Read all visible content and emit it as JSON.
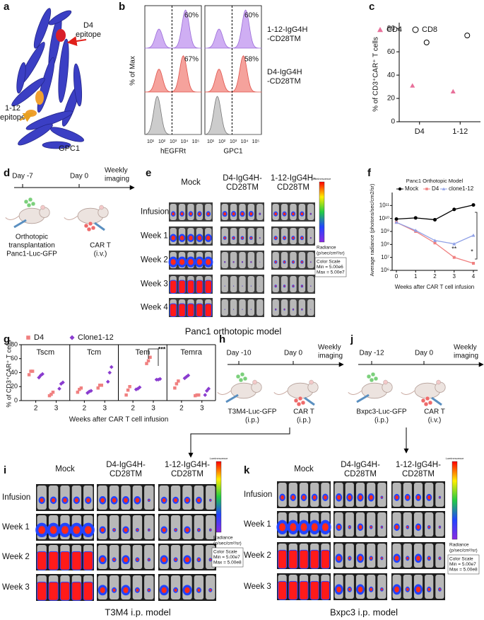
{
  "chart_data": [
    {
      "type": "scatter",
      "label": "c",
      "ylabel": "% of CD3⁺CAR⁺ T cells",
      "categories": [
        "D4",
        "1-12"
      ],
      "series": [
        {
          "name": "CD4",
          "color": "#e8709a",
          "marker": "triangle",
          "values": [
            31,
            26
          ]
        },
        {
          "name": "CD8",
          "color": "#000000",
          "marker": "open-circle",
          "values": [
            68,
            74
          ]
        }
      ],
      "ylim": [
        0,
        85
      ],
      "yticks": [
        0,
        20,
        40,
        60,
        80
      ]
    },
    {
      "type": "line",
      "label": "f",
      "title": "Panc1 Orthotopic Model",
      "ylabel": "Average radiance (photons/sec/cm2/sr)",
      "xlabel": "Weeks after CAR T cell infusion",
      "x": [
        0,
        1,
        2,
        3,
        4
      ],
      "xlim": [
        0,
        4
      ],
      "xticks": [
        0,
        1,
        2,
        3,
        4
      ],
      "log_y": true,
      "ylim": [
        1000000,
        1000000000000
      ],
      "yticks": [
        {
          "value": 1000000,
          "label": "10⁶"
        },
        {
          "value": 10000000,
          "label": "10⁷"
        },
        {
          "value": 100000000,
          "label": "10⁸"
        },
        {
          "value": 1000000000,
          "label": "10⁹"
        },
        {
          "value": 10000000000,
          "label": "10¹⁰"
        },
        {
          "value": 100000000000,
          "label": "10¹¹"
        }
      ],
      "series": [
        {
          "name": "Mock",
          "color": "#000000",
          "marker": "circle",
          "values": [
            9000000000,
            11000000000,
            8000000000,
            50000000000,
            110000000000
          ]
        },
        {
          "name": "D4",
          "color": "#f08080",
          "marker": "square",
          "values": [
            5000000000,
            1000000000,
            130000000,
            10000000,
            3500000
          ]
        },
        {
          "name": "clone1-12",
          "color": "#8fa0e6",
          "marker": "triangle",
          "values": [
            5000000000,
            1200000000,
            200000000,
            110000000,
            500000000
          ]
        }
      ],
      "annotations": [
        "**",
        "*"
      ]
    },
    {
      "type": "dot",
      "label": "g",
      "ylabel": "% of CD3⁺CAR⁺ T cells",
      "xlabel": "Weeks after CAR T cell infusion",
      "ylim": [
        0,
        80
      ],
      "yticks": [
        0,
        20,
        40,
        60,
        80
      ],
      "series": [
        {
          "name": "D4",
          "color": "#f08080",
          "marker": "square"
        },
        {
          "name": "Clone1-12",
          "color": "#8a3ccf",
          "marker": "diamond"
        }
      ],
      "groups": [
        {
          "name": "Tscm",
          "categories": [
            "2",
            "3"
          ],
          "values": [
            [
              [
                37,
                42,
                42
              ],
              [
                7,
                9,
                12
              ]
            ],
            [
              [
                33,
                36,
                38
              ],
              [
                17,
                24,
                26
              ]
            ]
          ]
        },
        {
          "name": "Tcm",
          "categories": [
            "2",
            "3"
          ],
          "values": [
            [
              [
                12,
                16,
                18
              ],
              [
                18,
                22,
                22
              ]
            ],
            [
              [
                11,
                13,
                14
              ],
              [
                27,
                40,
                48
              ]
            ]
          ]
        },
        {
          "name": "Tem",
          "categories": [
            "2",
            "3"
          ],
          "values": [
            [
              [
                8,
                15,
                20
              ],
              [
                53,
                57,
                62
              ]
            ],
            [
              [
                16,
                17,
                19
              ],
              [
                30,
                30,
                31
              ]
            ]
          ]
        },
        {
          "name": "Temra",
          "categories": [
            "2",
            "3"
          ],
          "values": [
            [
              [
                18,
                24,
                28
              ],
              [
                7,
                8,
                8
              ]
            ],
            [
              [
                32,
                34,
                36
              ],
              [
                8,
                14,
                17
              ]
            ]
          ]
        }
      ],
      "annotations": [
        "***"
      ]
    }
  ],
  "panels": {
    "a": {
      "letter": "a",
      "d4_epitope": [
        "D4",
        "epitope"
      ],
      "e112_epitope": [
        "1-12",
        "epitope"
      ],
      "protein": "GPC1"
    },
    "b": {
      "letter": "b",
      "ylabel": "% of Max",
      "xticks": [
        "10¹",
        "10²",
        "10³",
        "10⁴",
        "10⁵"
      ],
      "plots": [
        {
          "xlabel": "hEGFRt",
          "percents": [
            "60%",
            "67%"
          ]
        },
        {
          "xlabel": "GPC1",
          "percents": [
            "60%",
            "58%"
          ]
        }
      ],
      "legend": [
        [
          "1-12-IgG4H",
          "-CD28TM"
        ],
        [
          "D4-IgG4H",
          "-CD28TM"
        ]
      ]
    },
    "d": {
      "letter": "d",
      "days": [
        "Day -7",
        "Day 0"
      ],
      "imaging": [
        "Weekly",
        "imaging"
      ],
      "tumor": [
        "Orthotopic",
        "transplantation",
        "Panc1-Luc-GFP"
      ],
      "car": [
        "CAR T",
        "(i.v.)"
      ]
    },
    "h": {
      "letter": "h",
      "days": [
        "Day -10",
        "Day 0"
      ],
      "imaging": [
        "Weekly",
        "imaging"
      ],
      "tumor": [
        "T3M4-Luc-GFP",
        "(i.p.)"
      ],
      "car": [
        "CAR T",
        "(i.p.)"
      ]
    },
    "j": {
      "letter": "j",
      "days": [
        "Day -12",
        "Day 0"
      ],
      "imaging": [
        "Weekly",
        "imaging"
      ],
      "tumor": [
        "Bxpc3-Luc-GFP",
        "(i.p.)"
      ],
      "car": [
        "CAR T",
        "(i.v.)"
      ]
    },
    "e": {
      "letter": "e",
      "columns": [
        [
          "Mock"
        ],
        [
          "D4-IgG4H-",
          "CD28TM"
        ],
        [
          "1-12-IgG4H-",
          "CD28TM"
        ]
      ],
      "rows": [
        "Infusion",
        "Week 1",
        "Week 2",
        "Week 3",
        "Week 4"
      ],
      "caption": "Panc1 orthotopic model",
      "colorbar": {
        "title": "Luminescence",
        "radiance": [
          "Radiance",
          "(p/sec/cm²/sr)"
        ],
        "scale": [
          "Color Scale",
          "Min = 5.00e6",
          "Max = 5.00e7"
        ]
      }
    },
    "i": {
      "letter": "i",
      "columns": [
        [
          "Mock"
        ],
        [
          "D4-IgG4H-",
          "CD28TM"
        ],
        [
          "1-12-IgG4H-",
          "CD28TM"
        ]
      ],
      "rows": [
        "Infusion",
        "Week 1",
        "Week 2",
        "Week 3"
      ],
      "caption": "T3M4 i.p. model",
      "colorbar": {
        "title": "Luminescence",
        "radiance": [
          "Radiance",
          "(p/sec/cm²/sr)"
        ],
        "scale": [
          "Color Scale",
          "Min = 5.00e7",
          "Max = 5.00e8"
        ]
      }
    },
    "k": {
      "letter": "k",
      "columns": [
        [
          "Mock"
        ],
        [
          "D4-IgG4H-",
          "CD28TM"
        ],
        [
          "1-12-IgG4H-",
          "CD28TM"
        ]
      ],
      "rows": [
        "Infusion",
        "Week 1",
        "Week 2",
        "Week 3"
      ],
      "caption": "Bxpc3 i.p. model",
      "colorbar": {
        "title": "Luminescence",
        "radiance": [
          "Radiance",
          "(p/sec/cm²/sr)"
        ],
        "scale": [
          "Color Scale",
          "Min = 5.00e7",
          "Max = 5.00e8"
        ]
      }
    }
  }
}
